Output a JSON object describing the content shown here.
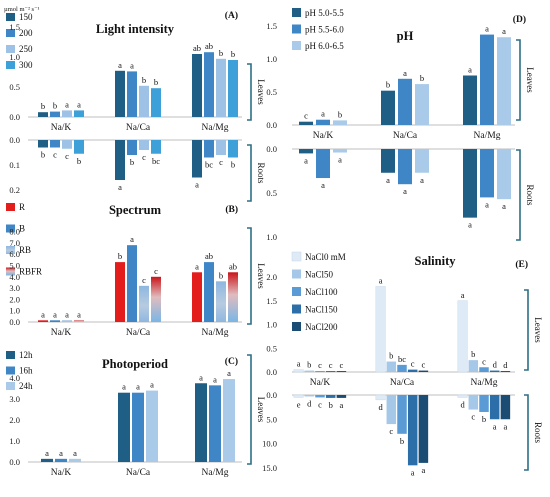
{
  "chart_data": [
    {
      "id": "A",
      "type": "bar",
      "panel_label": "(A)",
      "title": "Light intensity",
      "unit": "µmol m⁻² s⁻¹",
      "categories": [
        "Na/K",
        "Na/Ca",
        "Na/Mg"
      ],
      "colors": [
        "#1f5e85",
        "#3f86c6",
        "#9ec2e5",
        "#3ea0d8"
      ],
      "series": [
        {
          "name": "150",
          "leaves": [
            0.08,
            0.77,
            1.05
          ],
          "roots": [
            0.03,
            0.16,
            0.15
          ],
          "leaves_letters": [
            "b",
            "a",
            "ab"
          ],
          "roots_letters": [
            "b",
            "a",
            "a"
          ]
        },
        {
          "name": "200",
          "leaves": [
            0.09,
            0.76,
            1.08
          ],
          "roots": [
            0.03,
            0.06,
            0.07
          ],
          "leaves_letters": [
            "b",
            "a",
            "ab"
          ],
          "roots_letters": [
            "c",
            "b",
            "bc"
          ]
        },
        {
          "name": "250",
          "leaves": [
            0.11,
            0.52,
            0.97
          ],
          "roots": [
            0.035,
            0.04,
            0.06
          ],
          "leaves_letters": [
            "a",
            "b",
            "b"
          ],
          "roots_letters": [
            "c",
            "c",
            "c"
          ]
        },
        {
          "name": "300",
          "leaves": [
            0.11,
            0.48,
            0.95
          ],
          "roots": [
            0.055,
            0.055,
            0.07
          ],
          "leaves_letters": [
            "a",
            "b",
            "b"
          ],
          "roots_letters": [
            "b",
            "bc",
            "b"
          ]
        }
      ],
      "leaves_axis": {
        "ticks": [
          "0.0",
          "0.5",
          "1.0",
          "1.5"
        ]
      },
      "roots_axis": {
        "ticks": [
          "0.0",
          "0.1",
          "0.2"
        ]
      },
      "brackets": {
        "leaves": "Leaves",
        "roots": "Roots"
      }
    },
    {
      "id": "B",
      "type": "bar",
      "panel_label": "(B)",
      "title": "Spectrum",
      "categories": [
        "Na/K",
        "Na/Ca",
        "Na/Mg"
      ],
      "colors": [
        "#e31c1c",
        "#3f86c6",
        "#8ab8e0",
        "#e31c1c"
      ],
      "series": [
        {
          "name": "R",
          "values": [
            0.15,
            5.3,
            4.4
          ],
          "letters": [
            "a",
            "b",
            "a"
          ]
        },
        {
          "name": "B",
          "values": [
            0.15,
            6.8,
            5.3
          ],
          "letters": [
            "a",
            "a",
            "ab"
          ]
        },
        {
          "name": "RB",
          "values": [
            0.15,
            3.2,
            3.6
          ],
          "letters": [
            "a",
            "c",
            "b"
          ]
        },
        {
          "name": "RBFR",
          "values": [
            0.15,
            4.0,
            4.4
          ],
          "letters": [
            "a",
            "c",
            "ab"
          ]
        }
      ],
      "y_axis": {
        "ticks": [
          "0.0",
          "1.0",
          "2.0",
          "3.0",
          "4.0",
          "5.0",
          "6.0",
          "7.0",
          "8.0"
        ]
      },
      "brackets": {
        "leaves": "Leaves"
      }
    },
    {
      "id": "C",
      "type": "bar",
      "panel_label": "(C)",
      "title": "Photoperiod",
      "categories": [
        "Na/K",
        "Na/Ca",
        "Na/Mg"
      ],
      "colors": [
        "#1f5e85",
        "#3f86c6",
        "#a9cbe9"
      ],
      "series": [
        {
          "name": "12h",
          "values": [
            0.15,
            3.3,
            3.75
          ],
          "letters": [
            "a",
            "a",
            "a"
          ]
        },
        {
          "name": "16h",
          "values": [
            0.15,
            3.3,
            3.65
          ],
          "letters": [
            "a",
            "a",
            "a"
          ]
        },
        {
          "name": "24h",
          "values": [
            0.15,
            3.4,
            3.95
          ],
          "letters": [
            "a",
            "a",
            "a"
          ]
        }
      ],
      "y_axis": {
        "ticks": [
          "0.0",
          "1.0",
          "2.0",
          "3.0",
          "4.0"
        ]
      },
      "brackets": {
        "leaves": "Leaves"
      }
    },
    {
      "id": "D",
      "type": "bar",
      "panel_label": "(D)",
      "title": "pH",
      "categories": [
        "Na/K",
        "Na/Ca",
        "Na/Mg"
      ],
      "colors": [
        "#1f5e85",
        "#3f86c6",
        "#a9cbe9"
      ],
      "series": [
        {
          "name": "pH 5.0-5.5",
          "leaves": [
            0.05,
            0.52,
            0.75
          ],
          "roots": [
            0.05,
            0.27,
            0.78
          ],
          "leaves_letters": [
            "c",
            "b",
            "a"
          ],
          "roots_letters": [
            "a",
            "a",
            "a"
          ]
        },
        {
          "name": "pH 5.5-6.0",
          "leaves": [
            0.08,
            0.7,
            1.37
          ],
          "roots": [
            0.33,
            0.4,
            0.55
          ],
          "leaves_letters": [
            "a",
            "a",
            "a"
          ],
          "roots_letters": [
            "a",
            "a",
            "a"
          ]
        },
        {
          "name": "pH 6.0-6.5",
          "leaves": [
            0.07,
            0.62,
            1.33
          ],
          "roots": [
            0.04,
            0.27,
            0.57
          ],
          "leaves_letters": [
            "b",
            "b",
            "a"
          ],
          "roots_letters": [
            "a",
            "a",
            "a"
          ]
        }
      ],
      "leaves_axis": {
        "ticks": [
          "0.0",
          "0.5",
          "1.0",
          "1.5"
        ]
      },
      "roots_axis": {
        "ticks": [
          "0.0",
          "0.5",
          "1.0"
        ]
      },
      "brackets": {
        "leaves": "Leaves",
        "roots": "Roots"
      }
    },
    {
      "id": "E",
      "type": "bar",
      "panel_label": "(E)",
      "title": "Salinity",
      "categories": [
        "Na/K",
        "Na/Ca",
        "Na/Mg"
      ],
      "colors": [
        "#deebf7",
        "#a6c8e8",
        "#5b9bd5",
        "#2b6ea8",
        "#1b4d74"
      ],
      "series": [
        {
          "name": "NaCl0 mM",
          "leaves": [
            0.05,
            1.8,
            1.5
          ],
          "roots": [
            0.5,
            1.0,
            0.5
          ],
          "leaves_letters": [
            "a",
            "a",
            "a"
          ],
          "roots_letters": [
            "e",
            "d",
            "d"
          ]
        },
        {
          "name": "NaCl50",
          "leaves": [
            0.03,
            0.22,
            0.25
          ],
          "roots": [
            0.3,
            6.0,
            3.0
          ],
          "leaves_letters": [
            "b",
            "b",
            "b"
          ],
          "roots_letters": [
            "d",
            "c",
            "c"
          ]
        },
        {
          "name": "NaCl100",
          "leaves": [
            0.02,
            0.15,
            0.1
          ],
          "roots": [
            0.5,
            8.0,
            3.5
          ],
          "leaves_letters": [
            "c",
            "bc",
            "c"
          ],
          "roots_letters": [
            "c",
            "b",
            "b"
          ]
        },
        {
          "name": "NaCl150",
          "leaves": [
            0.02,
            0.05,
            0.03
          ],
          "roots": [
            0.6,
            14.5,
            5.0
          ],
          "leaves_letters": [
            "c",
            "c",
            "d"
          ],
          "roots_letters": [
            "b",
            "a",
            "a"
          ]
        },
        {
          "name": "NaCl200",
          "leaves": [
            0.02,
            0.03,
            0.02
          ],
          "roots": [
            0.6,
            14.0,
            5.0
          ],
          "leaves_letters": [
            "c",
            "c",
            "d"
          ],
          "roots_letters": [
            "a",
            "a",
            "a"
          ]
        }
      ],
      "leaves_axis": {
        "ticks": [
          "0.0",
          "0.5",
          "1.0",
          "1.5",
          "2.0"
        ]
      },
      "roots_axis": {
        "ticks": [
          "0.0",
          "5.0",
          "10.0",
          "15.0"
        ]
      },
      "brackets": {
        "leaves": "Leaves",
        "roots": "Roots"
      }
    }
  ]
}
